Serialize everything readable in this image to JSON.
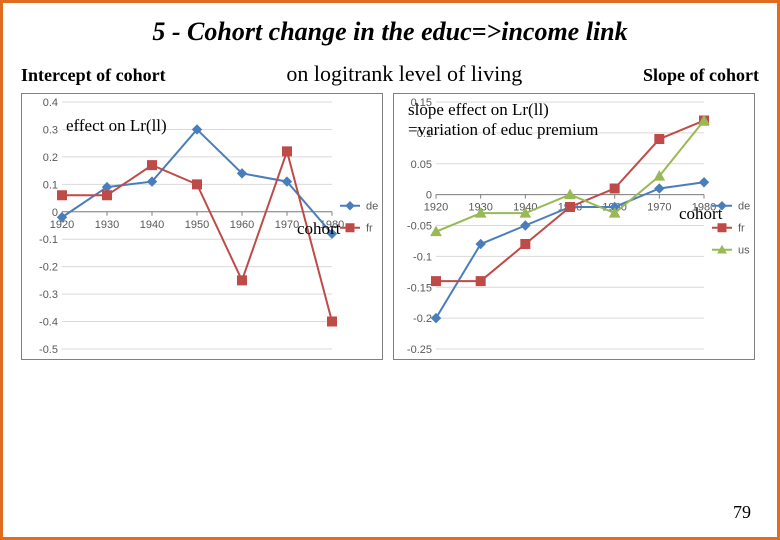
{
  "slide": {
    "title": "5 - Cohort change in the educ=>income link",
    "subtitle_left": "Intercept of cohort",
    "subtitle_center": "on logitrank  level of living",
    "subtitle_right": "Slope of cohort",
    "page_number": "79"
  },
  "left_chart": {
    "type": "line-scatter",
    "x_categories": [
      "1920",
      "1930",
      "1940",
      "1950",
      "1960",
      "1970",
      "1980"
    ],
    "y_ticks": [
      0.4,
      0.3,
      0.2,
      0.1,
      0,
      -0.1,
      -0.2,
      -0.3,
      -0.4,
      -0.5
    ],
    "ylim": [
      -0.5,
      0.4
    ],
    "grid_color": "#d9d9d9",
    "axis_color": "#808080",
    "tick_font_size": 11,
    "tick_color": "#595959",
    "annotation_topleft": "effect on Lr(ll)",
    "annotation_xaxis": "cohort",
    "series": [
      {
        "name": "de",
        "label": "de",
        "color": "#4a7ebb",
        "marker": "diamond",
        "marker_size": 6,
        "line_width": 2,
        "values": [
          -0.02,
          0.09,
          0.11,
          0.3,
          0.14,
          0.11,
          -0.08
        ]
      },
      {
        "name": "fr",
        "label": "fr",
        "color": "#be4b48",
        "marker": "square",
        "marker_size": 6,
        "line_width": 2,
        "values": [
          0.06,
          0.06,
          0.17,
          0.1,
          -0.25,
          0.22,
          -0.4
        ]
      }
    ],
    "legend": {
      "entries": [
        "de",
        "fr"
      ],
      "colors": [
        "#4a7ebb",
        "#be4b48"
      ],
      "markers": [
        "diamond",
        "square"
      ],
      "font_size": 11
    }
  },
  "right_chart": {
    "type": "line-scatter",
    "x_categories": [
      "1920",
      "1930",
      "1940",
      "1950",
      "1960",
      "1970",
      "1980"
    ],
    "y_ticks": [
      0.15,
      0.1,
      0.05,
      0,
      -0.05,
      -0.1,
      -0.15,
      -0.2,
      -0.25
    ],
    "ylim": [
      -0.25,
      0.15
    ],
    "grid_color": "#d9d9d9",
    "axis_color": "#808080",
    "tick_font_size": 11,
    "tick_color": "#595959",
    "annotation_topleft_l1": "slope effect on Lr(ll)",
    "annotation_topleft_l2": "=variation of educ premium",
    "annotation_xaxis": "cohort",
    "series": [
      {
        "name": "de",
        "label": "de",
        "color": "#4a7ebb",
        "marker": "diamond",
        "marker_size": 6,
        "line_width": 2,
        "values": [
          -0.2,
          -0.08,
          -0.05,
          -0.02,
          -0.02,
          0.01,
          0.02
        ]
      },
      {
        "name": "fr",
        "label": "fr",
        "color": "#be4b48",
        "marker": "square",
        "marker_size": 6,
        "line_width": 2,
        "values": [
          -0.14,
          -0.14,
          -0.08,
          -0.02,
          0.01,
          0.09,
          0.12
        ]
      },
      {
        "name": "us",
        "label": "us",
        "color": "#98b954",
        "marker": "triangle",
        "marker_size": 7,
        "line_width": 2,
        "values": [
          -0.06,
          -0.03,
          -0.03,
          0.0,
          -0.03,
          0.03,
          0.12
        ]
      }
    ],
    "legend": {
      "entries": [
        "de",
        "fr",
        "us"
      ],
      "colors": [
        "#4a7ebb",
        "#be4b48",
        "#98b954"
      ],
      "markers": [
        "diamond",
        "square",
        "triangle"
      ],
      "font_size": 11
    }
  }
}
